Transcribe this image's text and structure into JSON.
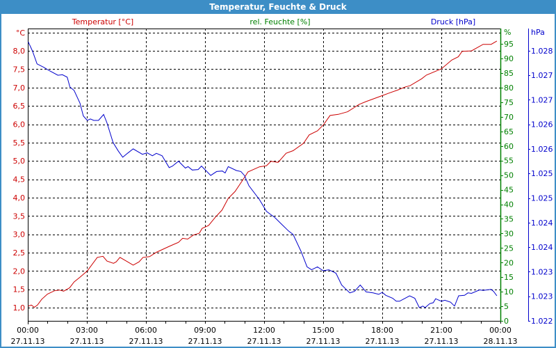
{
  "window": {
    "title": "Temperatur, Feuchte & Druck"
  },
  "colors": {
    "titlebar": "#3d8ec6",
    "temperature": "#cc0000",
    "humidity": "#008000",
    "pressure": "#0000cc",
    "grid": "#000000"
  },
  "chart_data": {
    "type": "line",
    "title": "Temperatur, Feuchte & Druck",
    "x_unit": "hours since 27.11.13 00:00",
    "xlim": [
      0,
      24
    ],
    "x_ticks": [
      {
        "h": 0,
        "time": "00:00",
        "date": "27.11.13"
      },
      {
        "h": 3,
        "time": "03:00",
        "date": "27.11.13"
      },
      {
        "h": 6,
        "time": "06:00",
        "date": "27.11.13"
      },
      {
        "h": 9,
        "time": "09:00",
        "date": "27.11.13"
      },
      {
        "h": 12,
        "time": "12:00",
        "date": "27.11.13"
      },
      {
        "h": 15,
        "time": "15:00",
        "date": "27.11.13"
      },
      {
        "h": 18,
        "time": "18:00",
        "date": "27.11.13"
      },
      {
        "h": 21,
        "time": "21:00",
        "date": "27.11.13"
      },
      {
        "h": 24,
        "time": "00:00",
        "date": "28.11.13"
      }
    ],
    "grid": true,
    "axes": {
      "temperature": {
        "legend": "Temperatur [°C]",
        "unit_label": "°C",
        "range": [
          0.64,
          8.61
        ],
        "ticks": [
          {
            "v": 1.0,
            "label": "1,0"
          },
          {
            "v": 1.5,
            "label": "1,5"
          },
          {
            "v": 2.0,
            "label": "2,0"
          },
          {
            "v": 2.5,
            "label": "2,5"
          },
          {
            "v": 3.0,
            "label": "3,0"
          },
          {
            "v": 3.5,
            "label": "3,5"
          },
          {
            "v": 4.0,
            "label": "4,0"
          },
          {
            "v": 4.5,
            "label": "4,5"
          },
          {
            "v": 5.0,
            "label": "5,0"
          },
          {
            "v": 5.5,
            "label": "5,5"
          },
          {
            "v": 6.0,
            "label": "6,0"
          },
          {
            "v": 6.5,
            "label": "6,5"
          },
          {
            "v": 7.0,
            "label": "7,0"
          },
          {
            "v": 7.5,
            "label": "7,5"
          },
          {
            "v": 8.0,
            "label": "8,0"
          }
        ]
      },
      "humidity": {
        "legend": "rel. Feuchte [%]",
        "unit_label": "%",
        "range": [
          0,
          100.3
        ],
        "ticks": [
          {
            "v": 0,
            "label": "0"
          },
          {
            "v": 5,
            "label": "5"
          },
          {
            "v": 10,
            "label": "10"
          },
          {
            "v": 15,
            "label": "15"
          },
          {
            "v": 20,
            "label": "20"
          },
          {
            "v": 25,
            "label": "25"
          },
          {
            "v": 30,
            "label": "30"
          },
          {
            "v": 35,
            "label": "35"
          },
          {
            "v": 40,
            "label": "40"
          },
          {
            "v": 45,
            "label": "45"
          },
          {
            "v": 50,
            "label": "50"
          },
          {
            "v": 55,
            "label": "55"
          },
          {
            "v": 60,
            "label": "60"
          },
          {
            "v": 65,
            "label": "65"
          },
          {
            "v": 70,
            "label": "70"
          },
          {
            "v": 75,
            "label": "75"
          },
          {
            "v": 80,
            "label": "80"
          },
          {
            "v": 85,
            "label": "85"
          },
          {
            "v": 90,
            "label": "90"
          },
          {
            "v": 95,
            "label": "95"
          }
        ]
      },
      "pressure": {
        "legend": "Druck [hPa]",
        "unit_label": "hPa",
        "range": [
          1.022,
          1.02795
        ],
        "ticks": [
          {
            "v": 1.022,
            "label": "1.022"
          },
          {
            "v": 1.0225,
            "label": "1.023"
          },
          {
            "v": 1.023,
            "label": "1.023"
          },
          {
            "v": 1.0235,
            "label": "1.024"
          },
          {
            "v": 1.024,
            "label": "1.024"
          },
          {
            "v": 1.0245,
            "label": "1.025"
          },
          {
            "v": 1.025,
            "label": "1.025"
          },
          {
            "v": 1.0255,
            "label": "1.026"
          },
          {
            "v": 1.026,
            "label": "1.026"
          },
          {
            "v": 1.0265,
            "label": "1.027"
          },
          {
            "v": 1.027,
            "label": "1.027"
          },
          {
            "v": 1.0275,
            "label": "1.028"
          }
        ]
      }
    },
    "series": [
      {
        "name": "Temperatur [°C]",
        "axis": "temperature",
        "x": [
          0.02,
          0.18,
          0.33,
          0.49,
          0.71,
          1.0,
          1.35,
          1.59,
          1.82,
          2.12,
          2.35,
          2.65,
          3.02,
          3.53,
          3.82,
          4.02,
          4.35,
          4.49,
          4.68,
          5.0,
          5.35,
          5.65,
          5.85,
          6.18,
          6.53,
          7.18,
          7.65,
          7.86,
          8.12,
          8.41,
          8.71,
          8.85,
          9.18,
          9.53,
          9.86,
          10.18,
          10.53,
          11.0,
          11.18,
          11.76,
          12.12,
          12.35,
          12.71,
          13.12,
          13.47,
          14.0,
          14.29,
          14.71,
          15.02,
          15.35,
          15.77,
          16.24,
          16.82,
          17.18,
          18.0,
          18.35,
          18.82,
          19.18,
          19.41,
          20.0,
          20.24,
          21.0,
          21.53,
          21.86,
          22.06,
          22.53,
          23.12,
          23.53,
          23.82
        ],
        "y": [
          1.04,
          1.07,
          1.01,
          1.07,
          1.23,
          1.37,
          1.46,
          1.48,
          1.45,
          1.54,
          1.7,
          1.83,
          2.0,
          2.37,
          2.4,
          2.27,
          2.21,
          2.25,
          2.37,
          2.27,
          2.16,
          2.25,
          2.37,
          2.39,
          2.51,
          2.67,
          2.78,
          2.89,
          2.87,
          2.98,
          3.03,
          3.16,
          3.24,
          3.47,
          3.66,
          3.98,
          4.17,
          4.55,
          4.7,
          4.84,
          4.87,
          4.99,
          4.96,
          5.21,
          5.28,
          5.48,
          5.71,
          5.82,
          5.99,
          6.24,
          6.27,
          6.34,
          6.54,
          6.62,
          6.78,
          6.85,
          6.94,
          7.02,
          7.05,
          7.24,
          7.34,
          7.51,
          7.75,
          7.84,
          7.99,
          8.0,
          8.18,
          8.18,
          8.27
        ]
      },
      {
        "name": "Druck [hPa]",
        "axis": "pressure",
        "x": [
          0.02,
          0.24,
          0.47,
          0.82,
          1.06,
          1.53,
          1.76,
          2.0,
          2.14,
          2.35,
          2.65,
          2.82,
          3.02,
          3.18,
          3.35,
          3.59,
          3.85,
          4.02,
          4.33,
          4.59,
          4.82,
          5.06,
          5.35,
          5.82,
          6.06,
          6.33,
          6.53,
          6.82,
          7.18,
          7.35,
          7.65,
          8.0,
          8.14,
          8.35,
          8.65,
          8.82,
          9.29,
          9.59,
          9.88,
          10.02,
          10.18,
          10.59,
          10.82,
          11.0,
          11.23,
          11.76,
          12.12,
          12.35,
          12.53,
          12.88,
          13.24,
          13.47,
          13.88,
          14.18,
          14.41,
          14.71,
          15.0,
          15.29,
          15.65,
          15.94,
          16.35,
          16.59,
          16.88,
          17.18,
          17.53,
          17.82,
          18.0,
          18.18,
          18.53,
          18.71,
          18.88,
          19.12,
          19.39,
          19.65,
          19.88,
          20.06,
          20.18,
          20.41,
          20.59,
          20.71,
          21.0,
          21.18,
          21.47,
          21.67,
          21.88,
          22.18,
          22.35,
          22.53,
          22.94,
          23.12,
          23.53,
          23.65,
          23.82
        ],
        "y": [
          1.02768,
          1.02749,
          1.02723,
          1.02716,
          1.0271,
          1.027,
          1.02701,
          1.02696,
          1.02676,
          1.02669,
          1.02643,
          1.02617,
          1.02608,
          1.02611,
          1.02608,
          1.02608,
          1.0262,
          1.02603,
          1.02563,
          1.02546,
          1.02533,
          1.02541,
          1.0255,
          1.02539,
          1.02542,
          1.02536,
          1.02541,
          1.02536,
          1.02512,
          1.02515,
          1.02525,
          1.02511,
          1.02514,
          1.02507,
          1.02508,
          1.02515,
          1.02496,
          1.02504,
          1.02505,
          1.02501,
          1.02514,
          1.02506,
          1.02504,
          1.02496,
          1.02475,
          1.02447,
          1.02423,
          1.02416,
          1.02411,
          1.02397,
          1.02383,
          1.02376,
          1.02341,
          1.0231,
          1.02304,
          1.0231,
          1.02302,
          1.02304,
          1.02297,
          1.02273,
          1.02257,
          1.0226,
          1.02273,
          1.02259,
          1.02257,
          1.02254,
          1.02258,
          1.02252,
          1.02246,
          1.0224,
          1.0224,
          1.02245,
          1.02251,
          1.02246,
          1.02227,
          1.0223,
          1.02227,
          1.02235,
          1.02237,
          1.02245,
          1.0224,
          1.02242,
          1.02238,
          1.0223,
          1.02251,
          1.02252,
          1.02257,
          1.02256,
          1.02263,
          1.02262,
          1.02264,
          1.0226,
          1.02251
        ]
      }
    ]
  }
}
